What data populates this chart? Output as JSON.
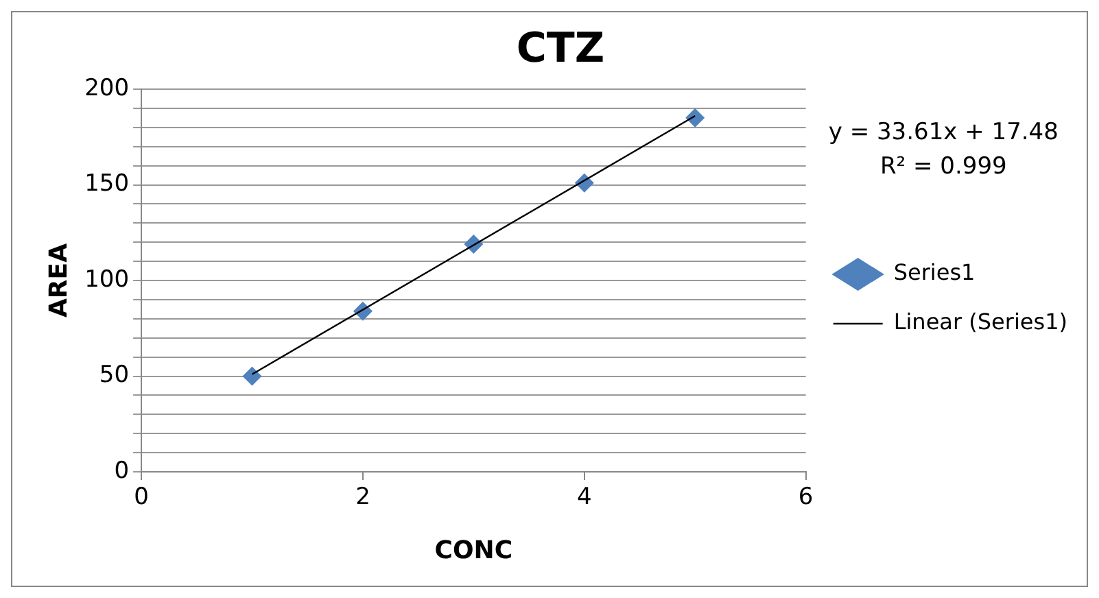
{
  "chart_data": {
    "type": "scatter",
    "title": "CTZ",
    "xlabel": "CONC",
    "ylabel": "AREA",
    "x": [
      1,
      2,
      3,
      4,
      5
    ],
    "series": [
      {
        "name": "Series1",
        "color": "#4f81bd",
        "values": [
          50,
          84,
          119,
          151,
          185
        ],
        "marker": "diamond"
      },
      {
        "name": "Linear (Series1)",
        "type": "line",
        "color": "#000000",
        "x": [
          1,
          5
        ],
        "values": [
          51,
          186
        ],
        "marker": "none",
        "line_style": "solid"
      }
    ],
    "xlim": [
      0,
      6
    ],
    "xticks": [
      0,
      2,
      4,
      6
    ],
    "ylim": [
      0,
      200
    ],
    "yticks": [
      0,
      {
        "value": 10,
        "label": null
      },
      {
        "value": 20,
        "label": null
      },
      {
        "value": 30,
        "label": null
      },
      {
        "value": 40,
        "label": null
      },
      50,
      {
        "value": 60,
        "label": null
      },
      {
        "value": 70,
        "label": null
      },
      {
        "value": 80,
        "label": null
      },
      {
        "value": 90,
        "label": null
      },
      100,
      {
        "value": 110,
        "label": null
      },
      {
        "value": 120,
        "label": null
      },
      {
        "value": 130,
        "label": null
      },
      {
        "value": 140,
        "label": null
      },
      150,
      {
        "value": 160,
        "label": null
      },
      {
        "value": 170,
        "label": null
      },
      {
        "value": 180,
        "label": null
      },
      {
        "value": 190,
        "label": null
      },
      200
    ],
    "grid": "y",
    "legend": "right",
    "annotations": [
      "y = 33.61x + 17.48",
      "R² = 0.999"
    ]
  }
}
